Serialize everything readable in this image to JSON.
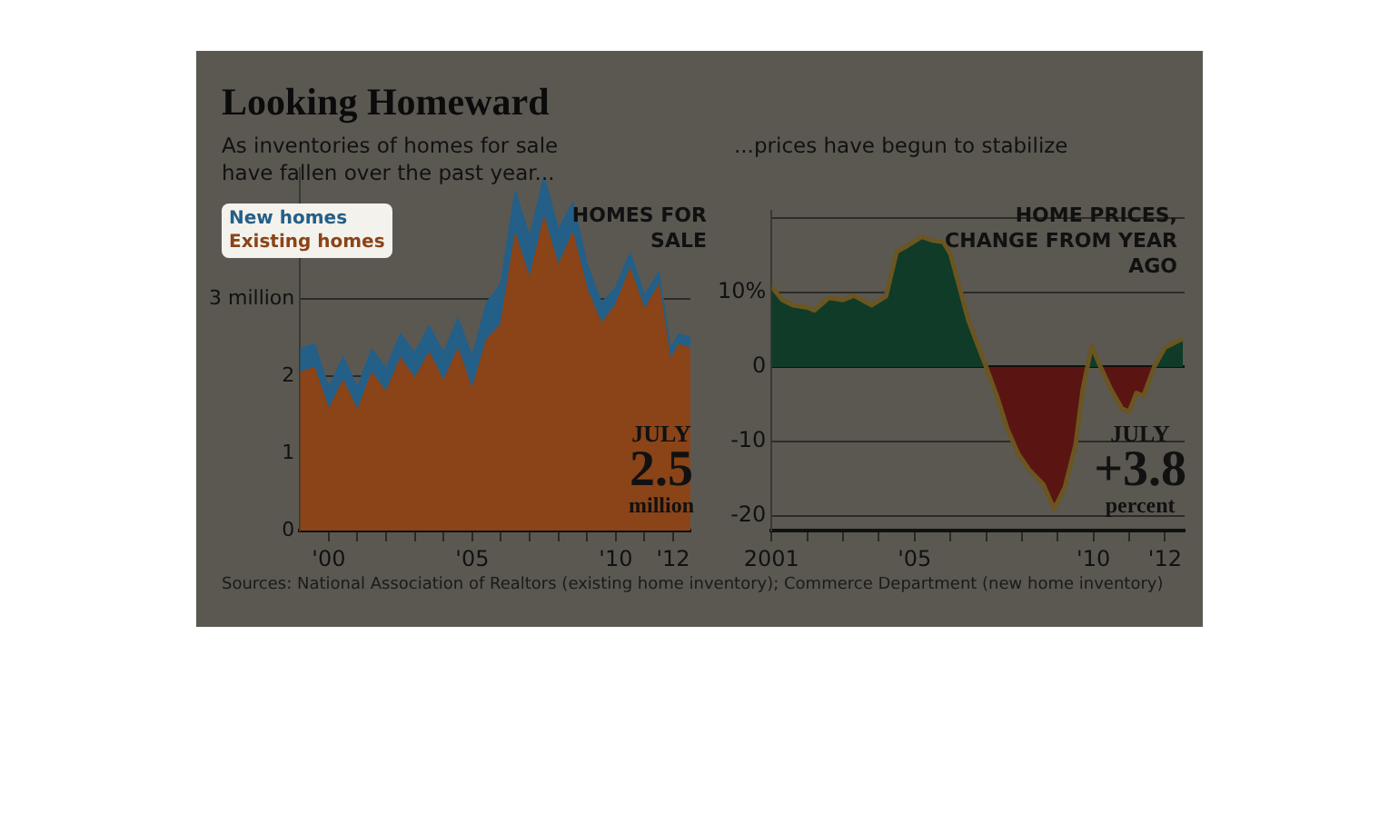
{
  "chart_data": [
    {
      "type": "area",
      "title": "Looking Homeward",
      "subtitle": "As inventories of homes for sale have fallen over the past year...",
      "stacked": true,
      "legend": "top left",
      "grid": "y",
      "marker": "none",
      "x": [
        1999,
        1999.5,
        2000,
        2000.5,
        2001,
        2001.5,
        2002,
        2002.5,
        2003,
        2003.5,
        2004,
        2004.5,
        2005,
        2005.5,
        2006,
        2006.5,
        2007,
        2007.5,
        2008,
        2008.5,
        2009,
        2009.5,
        2010,
        2010.5,
        2011,
        2011.5,
        2011.9,
        2012.2,
        2012.6
      ],
      "series": [
        {
          "name": "Existing homes",
          "color": "#8a4418",
          "values": [
            2.05,
            2.11,
            1.56,
            1.94,
            1.55,
            2.04,
            1.79,
            2.23,
            1.97,
            2.3,
            1.93,
            2.35,
            1.82,
            2.47,
            2.67,
            3.83,
            3.26,
            4.05,
            3.43,
            3.85,
            3.12,
            2.68,
            2.92,
            3.39,
            2.86,
            3.18,
            2.2,
            2.41,
            2.36
          ]
        },
        {
          "name": "New homes",
          "color": "#245f88",
          "values": [
            0.3,
            0.31,
            0.29,
            0.31,
            0.3,
            0.31,
            0.31,
            0.32,
            0.33,
            0.35,
            0.37,
            0.4,
            0.43,
            0.48,
            0.53,
            0.57,
            0.54,
            0.53,
            0.47,
            0.4,
            0.33,
            0.27,
            0.23,
            0.21,
            0.19,
            0.17,
            0.15,
            0.14,
            0.14
          ]
        }
      ],
      "xlim": [
        1999,
        2012.6
      ],
      "xticks": [
        {
          "value": 2000,
          "label": "'00"
        },
        {
          "value": 2001,
          "label": null
        },
        {
          "value": 2002,
          "label": null
        },
        {
          "value": 2003,
          "label": null
        },
        {
          "value": 2004,
          "label": null
        },
        {
          "value": 2005,
          "label": "'05"
        },
        {
          "value": 2006,
          "label": null
        },
        {
          "value": 2007,
          "label": null
        },
        {
          "value": 2008,
          "label": null
        },
        {
          "value": 2009,
          "label": null
        },
        {
          "value": 2010,
          "label": "'10"
        },
        {
          "value": 2011,
          "label": null
        },
        {
          "value": 2012,
          "label": "'12"
        }
      ],
      "ylim": [
        0,
        4.7
      ],
      "yticks": [
        0,
        1,
        2,
        {
          "value": 3,
          "label": "3 million"
        }
      ],
      "annotations": [
        "HOMES FOR SALE",
        "JULY",
        {
          "text": "2.5",
          "x": 2012.6,
          "y": 2.5
        },
        "million",
        "Sources: National Association of Realtors (existing home inventory); Commerce Department (new home inventory)"
      ]
    },
    {
      "type": "area",
      "subtitle": "...prices have begun to stabilize",
      "grid": "y",
      "marker": "none",
      "x": [
        2001,
        2001.3,
        2001.6,
        2002,
        2002.2,
        2002.6,
        2003,
        2003.3,
        2003.8,
        2004.2,
        2004.5,
        2004.8,
        2005.2,
        2005.5,
        2005.8,
        2006,
        2006.2,
        2006.5,
        2006.8,
        2007,
        2007.3,
        2007.6,
        2007.9,
        2008.2,
        2008.6,
        2008.9,
        2009.2,
        2009.5,
        2009.7,
        2009.83,
        2009.95,
        2010.2,
        2010.5,
        2010.8,
        2011,
        2011.2,
        2011.4,
        2011.7,
        2012,
        2012.5
      ],
      "series": [
        {
          "color": "#0f3b28",
          "values": [
            10.8,
            9,
            8.3,
            8,
            7.6,
            9.3,
            9,
            9.6,
            8.3,
            9.5,
            15.5,
            16.3,
            17.5,
            17,
            16.8,
            15.2,
            11.7,
            6.3,
            2.5,
            0,
            null,
            null,
            null,
            null,
            null,
            null,
            null,
            null,
            null,
            0,
            2.8,
            0,
            null,
            null,
            null,
            null,
            null,
            0,
            2.6,
            3.8
          ]
        },
        {
          "color": "#5a1512",
          "values": [
            null,
            null,
            null,
            null,
            null,
            null,
            null,
            null,
            null,
            null,
            null,
            null,
            null,
            null,
            null,
            null,
            null,
            null,
            null,
            0,
            -3.9,
            -8.4,
            -11.7,
            -13.8,
            -15.8,
            -19.1,
            -16.2,
            -10.5,
            -3.1,
            0,
            null,
            0,
            -3.1,
            -5.6,
            -6,
            -3.5,
            -3.9,
            0,
            null,
            null
          ]
        },
        {
          "type": "line",
          "color": "#6b5520",
          "values": [
            10.8,
            9,
            8.3,
            8,
            7.6,
            9.3,
            9,
            9.6,
            8.3,
            9.5,
            15.5,
            16.3,
            17.5,
            17,
            16.8,
            15.2,
            11.7,
            6.3,
            2.5,
            0,
            -3.9,
            -8.4,
            -11.7,
            -13.8,
            -15.8,
            -19.1,
            -16.2,
            -10.5,
            -3.1,
            0,
            2.8,
            0,
            -3.1,
            -5.6,
            -6,
            -3.5,
            -3.9,
            0,
            2.6,
            3.8
          ]
        }
      ],
      "xlim": [
        2001,
        2012.55
      ],
      "xticks": [
        {
          "value": 2001,
          "label": "2001"
        },
        {
          "value": 2002,
          "label": null
        },
        {
          "value": 2003,
          "label": null
        },
        {
          "value": 2004,
          "label": null
        },
        {
          "value": 2005,
          "label": "'05"
        },
        {
          "value": 2006,
          "label": null
        },
        {
          "value": 2007,
          "label": null
        },
        {
          "value": 2008,
          "label": null
        },
        {
          "value": 2009,
          "label": null
        },
        {
          "value": 2010,
          "label": "'10"
        },
        {
          "value": 2011,
          "label": null
        },
        {
          "value": 2012,
          "label": "'12"
        }
      ],
      "ylim": [
        -22,
        21
      ],
      "yticks": [
        -20,
        -10,
        0,
        {
          "value": 10,
          "label": "10%"
        },
        {
          "value": 20,
          "label": null
        }
      ],
      "annotations": [
        "HOME PRICES, CHANGE FROM YEAR AGO",
        "JULY",
        {
          "text": "+3.8",
          "x": 2012.5,
          "y": 3.8
        },
        "percent"
      ]
    }
  ]
}
